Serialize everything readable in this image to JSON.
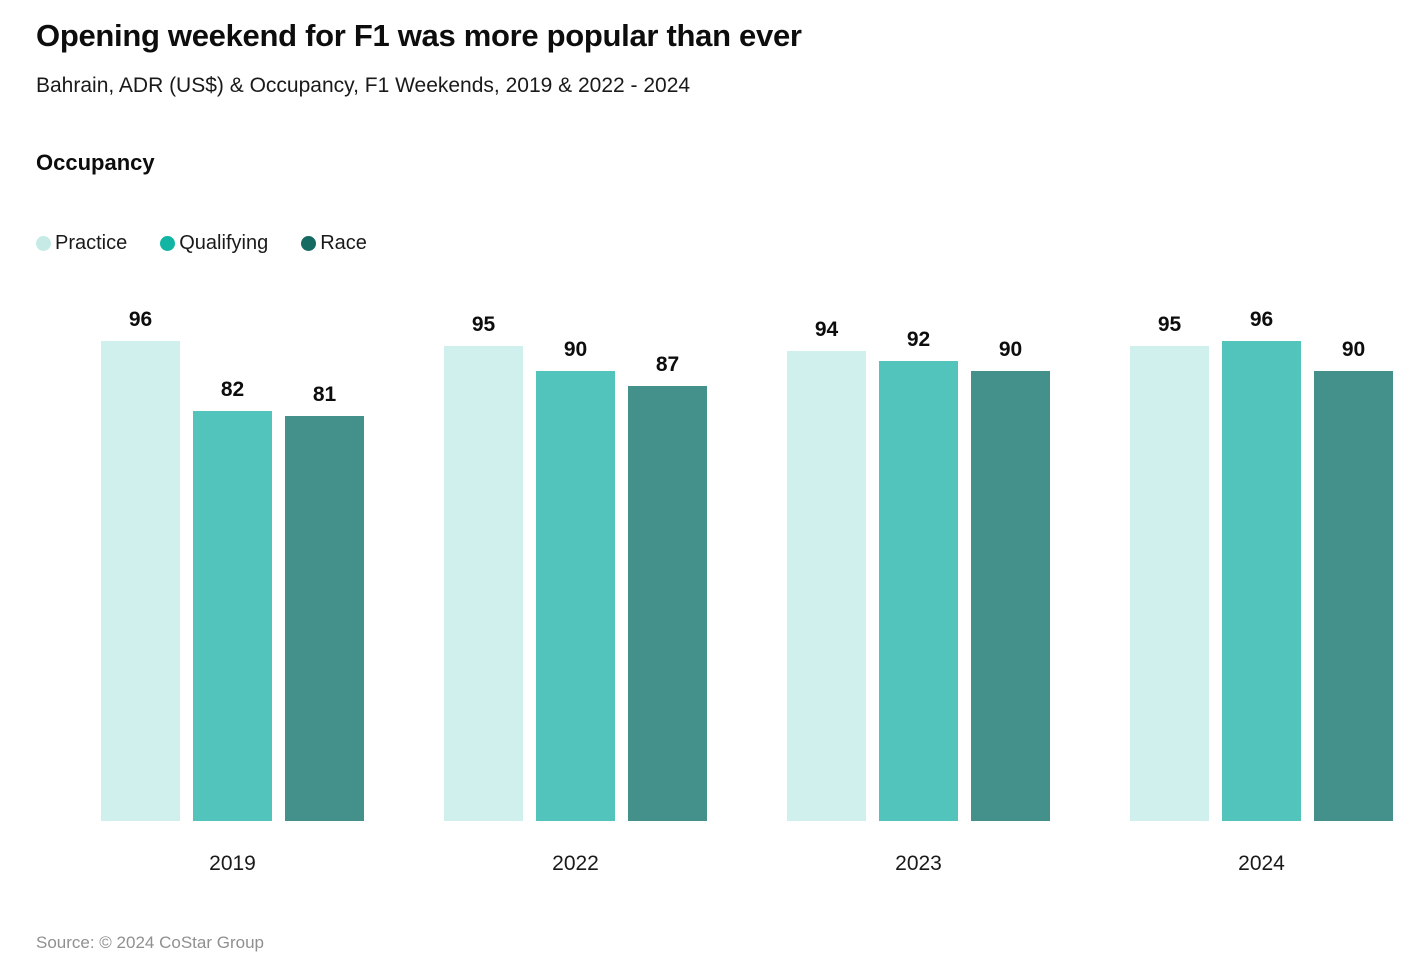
{
  "header": {
    "title": "Opening weekend for F1 was more popular than ever",
    "subtitle": "Bahrain, ADR (US$) & Occupancy, F1 Weekends, 2019 & 2022 - 2024"
  },
  "section_label": "Occupancy",
  "chart_data": {
    "type": "bar",
    "title": "Occupancy",
    "categories": [
      "2019",
      "2022",
      "2023",
      "2024"
    ],
    "series": [
      {
        "name": "Practice",
        "values": [
          96,
          95,
          94,
          95
        ],
        "bar_color": "#cff0ed",
        "legend_color": "#c6ebe7"
      },
      {
        "name": "Qualifying",
        "values": [
          82,
          90,
          92,
          96
        ],
        "bar_color": "#52c4bc",
        "legend_color": "#12b5a4"
      },
      {
        "name": "Race",
        "values": [
          81,
          87,
          90,
          90
        ],
        "bar_color": "#44908a",
        "legend_color": "#156a62"
      }
    ],
    "ylim": [
      0,
      100
    ],
    "grid": false,
    "axis_lines": false,
    "legend_position": "top-left",
    "value_labels": true
  },
  "footer": {
    "source": "Source: © 2024 CoStar Group"
  }
}
